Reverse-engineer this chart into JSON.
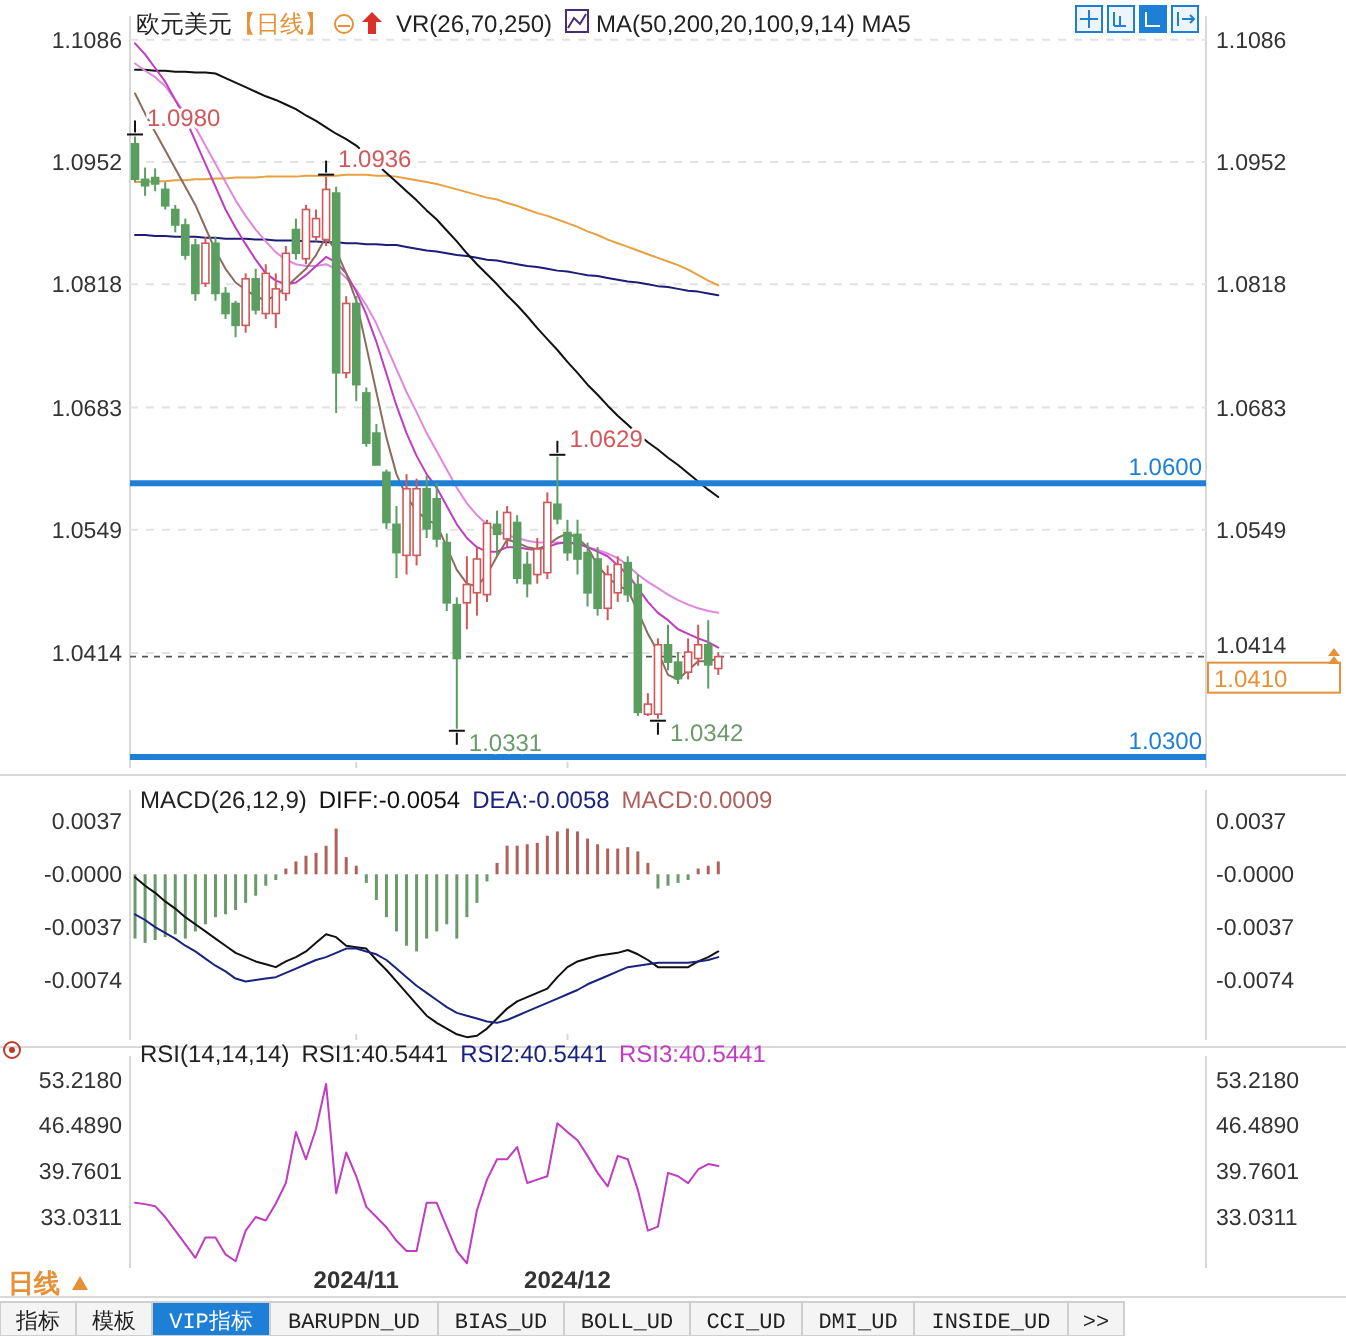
{
  "chart_data": [
    {
      "type": "candlestick",
      "title": "欧元美元",
      "subtitle": "【日线】",
      "categories": [
        null,
        null,
        null,
        null,
        null,
        null,
        null,
        null,
        null,
        null,
        null,
        null,
        null,
        null,
        null,
        null,
        null,
        null,
        null,
        null,
        null,
        null,
        "2024/11",
        null,
        null,
        null,
        null,
        null,
        null,
        null,
        null,
        null,
        null,
        null,
        null,
        null,
        null,
        null,
        null,
        null,
        null,
        null,
        null,
        "2024/12",
        null,
        null,
        null,
        null,
        null,
        null,
        null,
        null,
        null,
        null,
        null,
        null,
        null,
        null,
        null,
        null,
        null,
        null,
        null,
        null,
        null,
        null,
        null,
        null,
        null,
        null,
        null,
        null,
        null,
        null,
        null,
        null,
        null,
        null,
        null,
        null,
        null,
        null,
        null,
        null,
        null,
        null,
        null,
        null,
        null,
        null,
        null,
        null,
        null,
        null,
        null,
        null,
        null,
        null,
        null,
        null,
        null,
        null,
        null,
        null,
        null,
        null,
        null
      ],
      "ohlc": [
        [
          1.0972,
          1.098,
          1.093,
          1.0933
        ],
        [
          1.0933,
          1.0946,
          1.0915,
          1.0926
        ],
        [
          1.0935,
          1.0945,
          1.092,
          1.0928
        ],
        [
          1.0922,
          1.093,
          1.09,
          1.0904
        ],
        [
          1.09,
          1.0905,
          1.0875,
          1.0883
        ],
        [
          1.0883,
          1.089,
          1.0845,
          1.085
        ],
        [
          1.0861,
          1.0868,
          1.08,
          1.0808
        ],
        [
          1.0819,
          1.087,
          1.0815,
          1.0863
        ],
        [
          1.0863,
          1.087,
          1.08,
          1.0808
        ],
        [
          1.0808,
          1.0815,
          1.078,
          1.0786
        ],
        [
          1.0797,
          1.08,
          1.076,
          1.0773
        ],
        [
          1.0773,
          1.083,
          1.0765,
          1.0824
        ],
        [
          1.0824,
          1.0835,
          1.0785,
          1.079
        ],
        [
          1.0786,
          1.084,
          1.078,
          1.083
        ],
        [
          1.0786,
          1.083,
          1.077,
          1.0813
        ],
        [
          1.0808,
          1.086,
          1.08,
          1.0852
        ],
        [
          1.0878,
          1.089,
          1.0845,
          1.0852
        ],
        [
          1.0846,
          1.0905,
          1.084,
          1.09
        ],
        [
          1.087,
          1.09,
          1.0865,
          1.089
        ],
        [
          1.0867,
          1.0936,
          1.086,
          1.0922
        ],
        [
          1.0918,
          1.0925,
          1.0677,
          1.0721
        ],
        [
          1.0721,
          1.0805,
          1.0715,
          1.0797
        ],
        [
          1.0797,
          1.0805,
          1.069,
          1.0708
        ],
        [
          1.0699,
          1.0705,
          1.064,
          1.0644
        ],
        [
          1.0655,
          1.0665,
          1.062,
          1.062
        ],
        [
          1.0612,
          1.0615,
          1.055,
          1.0557
        ],
        [
          1.0555,
          1.0575,
          1.0496,
          1.0524
        ],
        [
          1.0521,
          1.061,
          1.05,
          1.0594
        ],
        [
          1.0521,
          1.0605,
          1.051,
          1.0594
        ],
        [
          1.0594,
          1.0608,
          1.054,
          1.055
        ],
        [
          1.0583,
          1.06,
          1.053,
          1.0539
        ],
        [
          1.0535,
          1.0545,
          1.046,
          1.0469
        ],
        [
          1.0467,
          1.0475,
          1.0331,
          1.0408
        ],
        [
          1.0469,
          1.052,
          1.044,
          1.0489
        ],
        [
          1.048,
          1.053,
          1.0455,
          1.0517
        ],
        [
          1.0478,
          1.056,
          1.047,
          1.0556
        ],
        [
          1.0555,
          1.057,
          1.052,
          1.0544
        ],
        [
          1.0539,
          1.0575,
          1.053,
          1.0568
        ],
        [
          1.0557,
          1.0565,
          1.049,
          1.0496
        ],
        [
          1.0511,
          1.0525,
          1.0475,
          1.049
        ],
        [
          1.05,
          1.054,
          1.049,
          1.0528
        ],
        [
          1.0502,
          1.059,
          1.0495,
          1.0579
        ],
        [
          1.0577,
          1.0629,
          1.0555,
          1.0561
        ],
        [
          1.0546,
          1.056,
          1.0515,
          1.0524
        ],
        [
          1.0544,
          1.056,
          1.05,
          1.0517
        ],
        [
          1.0524,
          1.0535,
          1.0465,
          1.048
        ],
        [
          1.0517,
          1.053,
          1.0455,
          1.0463
        ],
        [
          1.0463,
          1.051,
          1.045,
          1.05
        ],
        [
          1.048,
          1.052,
          1.047,
          1.0511
        ],
        [
          1.0513,
          1.052,
          1.047,
          1.0478
        ],
        [
          1.0489,
          1.05,
          1.0345,
          1.0349
        ],
        [
          1.0347,
          1.037,
          1.0345,
          1.0358
        ],
        [
          1.0347,
          1.043,
          1.0342,
          1.0423
        ],
        [
          1.0423,
          1.0445,
          1.0395,
          1.0404
        ],
        [
          1.0404,
          1.0415,
          1.038,
          1.0386
        ],
        [
          1.0393,
          1.043,
          1.0385,
          1.0415
        ],
        [
          1.0408,
          1.0445,
          1.04,
          1.0423
        ],
        [
          1.0423,
          1.045,
          1.0375,
          1.0401
        ],
        [
          1.0397,
          1.0415,
          1.039,
          1.041
        ],
        null,
        null,
        null,
        null,
        null,
        null,
        null,
        null,
        null,
        null,
        null,
        null,
        null,
        null,
        null,
        null,
        null,
        null,
        null,
        null,
        null,
        null,
        null,
        null,
        null,
        null,
        null,
        null,
        null,
        null,
        null,
        null,
        null,
        null,
        null,
        null,
        null,
        null,
        null,
        null,
        null,
        null,
        null,
        null,
        null,
        null,
        null,
        null
      ],
      "colors": [
        "#5a9e60",
        "#5a9e60",
        "#5a9e60",
        "#5a9e60",
        "#5a9e60",
        "#5a9e60",
        "#5a9e60",
        "#d0585a",
        "#5a9e60",
        "#5a9e60",
        "#5a9e60",
        "#d0585a",
        "#5a9e60",
        "#d0585a",
        "#d0585a",
        "#d0585a",
        "#5a9e60",
        "#d0585a",
        "#d0585a",
        "#d0585a",
        "#5a9e60",
        "#d0585a",
        "#5a9e60",
        "#5a9e60",
        "#5a9e60",
        "#5a9e60",
        "#5a9e60",
        "#d0585a",
        "#d0585a",
        "#5a9e60",
        "#5a9e60",
        "#5a9e60",
        "#5a9e60",
        "#d0585a",
        "#d0585a",
        "#d0585a",
        "#5a9e60",
        "#d0585a",
        "#5a9e60",
        "#5a9e60",
        "#d0585a",
        "#d0585a",
        "#5a9e60",
        "#5a9e60",
        "#5a9e60",
        "#5a9e60",
        "#5a9e60",
        "#d0585a",
        "#d0585a",
        "#5a9e60",
        "#5a9e60",
        "#d0585a",
        "#d0585a",
        "#5a9e60",
        "#5a9e60",
        "#d0585a",
        "#d0585a",
        "#5a9e60",
        "#d0585a",
        null,
        null,
        null,
        null,
        null,
        null,
        null,
        null,
        null,
        null,
        null,
        null,
        null,
        null,
        null,
        null,
        null,
        null,
        null,
        null,
        null,
        null,
        null,
        null,
        null,
        null,
        null,
        null,
        null,
        null,
        null,
        null,
        null,
        null,
        null,
        null,
        null,
        null,
        null,
        null,
        null,
        null,
        null,
        null,
        null,
        null,
        null,
        null
      ],
      "series": [
        {
          "type": "line",
          "color": "#1c1c7a",
          "values": [
            1.0872,
            1.0872,
            1.0871,
            1.0871,
            1.087,
            1.087,
            1.087,
            1.0869,
            1.0869,
            1.0868,
            1.0868,
            1.0868,
            1.0867,
            1.0867,
            1.0866,
            1.0866,
            1.0866,
            1.0865,
            1.0865,
            1.0864,
            1.0864,
            1.0863,
            1.0863,
            1.0862,
            1.0862,
            1.0861,
            1.0861,
            1.0859,
            1.0857,
            1.0855,
            1.0854,
            1.0852,
            1.085,
            1.0849,
            1.0847,
            1.0845,
            1.0844,
            1.0842,
            1.084,
            1.0838,
            1.0837,
            1.0835,
            1.0833,
            1.0832,
            1.083,
            1.0828,
            1.0827,
            1.0825,
            1.0823,
            1.0821,
            1.082,
            1.0818,
            1.0816,
            1.0815,
            1.0813,
            1.0811,
            1.081,
            1.0808,
            1.0806,
            null,
            null,
            null,
            null,
            null,
            null,
            null,
            null,
            null,
            null,
            null,
            null,
            null,
            null,
            null,
            null,
            null,
            null,
            null,
            null,
            null,
            null,
            null,
            null,
            null,
            null,
            null,
            null,
            null,
            null,
            null,
            null,
            null,
            null,
            null,
            null,
            null,
            null,
            null,
            null,
            null,
            null,
            null,
            null,
            null,
            null,
            null,
            null
          ]
        },
        {
          "type": "line",
          "color": "#e8a040",
          "values": [
            1.093,
            1.093,
            1.0931,
            1.0931,
            1.0932,
            1.0932,
            1.0933,
            1.0933,
            1.0934,
            1.0934,
            1.0935,
            1.0935,
            1.0935,
            1.0936,
            1.0936,
            1.0936,
            1.0936,
            1.0937,
            1.0937,
            1.0937,
            1.0937,
            1.0938,
            1.0938,
            1.0938,
            1.0937,
            1.0937,
            1.0936,
            1.0934,
            1.0932,
            1.093,
            1.0928,
            1.0925,
            1.0922,
            1.0919,
            1.0916,
            1.0913,
            1.0911,
            1.0907,
            1.0904,
            1.09,
            1.0896,
            1.0893,
            1.0889,
            1.0885,
            1.0881,
            1.0876,
            1.0872,
            1.0867,
            1.0863,
            1.0859,
            1.0855,
            1.0851,
            1.0847,
            1.0843,
            1.0839,
            1.0834,
            1.0828,
            1.0822,
            1.0817,
            null,
            null,
            null,
            null,
            null,
            null,
            null,
            null,
            null,
            null,
            null,
            null,
            null,
            null,
            null,
            null,
            null,
            null,
            null,
            null,
            null,
            null,
            null,
            null,
            null,
            null,
            null,
            null,
            null,
            null,
            null,
            null,
            null,
            null,
            null,
            null,
            null,
            null,
            null,
            null,
            null,
            null,
            null,
            null,
            null,
            null,
            null,
            null
          ]
        },
        {
          "type": "line",
          "color": "#111111",
          "values": [
            1.1053,
            1.1053,
            1.1052,
            1.1052,
            1.1051,
            1.1051,
            1.105,
            1.105,
            1.1049,
            1.1044,
            1.1039,
            1.1034,
            1.1029,
            1.1024,
            1.102,
            1.1015,
            1.101,
            1.1003,
            1.0997,
            1.099,
            1.0983,
            1.0977,
            1.097,
            1.096,
            1.095,
            1.094,
            1.093,
            1.092,
            1.091,
            1.0899,
            1.0889,
            1.0877,
            1.0865,
            1.0852,
            1.084,
            1.0829,
            1.0818,
            1.0806,
            1.0795,
            1.0783,
            1.077,
            1.0758,
            1.0746,
            1.0733,
            1.0721,
            1.0708,
            1.0697,
            1.0685,
            1.0674,
            1.0664,
            1.0654,
            1.0645,
            1.0637,
            1.0628,
            1.062,
            1.0611,
            1.0602,
            1.0593,
            1.0585,
            null,
            null,
            null,
            null,
            null,
            null,
            null,
            null,
            null,
            null,
            null,
            null,
            null,
            null,
            null,
            null,
            null,
            null,
            null,
            null,
            null,
            null,
            null,
            null,
            null,
            null,
            null,
            null,
            null,
            null,
            null,
            null,
            null,
            null,
            null,
            null,
            null,
            null,
            null,
            null,
            null,
            null,
            null,
            null,
            null,
            null,
            null,
            null
          ]
        },
        {
          "type": "line",
          "color": "#e088e0",
          "values": [
            1.106,
            1.1052,
            1.1045,
            1.1035,
            1.102,
            1.1005,
            1.099,
            1.097,
            1.095,
            1.093,
            1.091,
            1.0893,
            1.0878,
            1.0865,
            1.0853,
            1.0845,
            1.084,
            1.0838,
            1.0838,
            1.084,
            1.0835,
            1.0825,
            1.0812,
            1.0795,
            1.0775,
            1.075,
            1.0725,
            1.07,
            1.0678,
            1.0655,
            1.0635,
            1.0615,
            1.0595,
            1.0578,
            1.0565,
            1.0555,
            1.0548,
            1.0543,
            1.054,
            1.0537,
            1.0535,
            1.0535,
            1.0535,
            1.0535,
            1.0533,
            1.053,
            1.0527,
            1.0523,
            1.0518,
            1.051,
            1.05,
            1.0492,
            1.0485,
            1.0478,
            1.0472,
            1.0467,
            1.0463,
            1.046,
            1.0458,
            null,
            null,
            null,
            null,
            null,
            null,
            null,
            null,
            null,
            null,
            null,
            null,
            null,
            null,
            null,
            null,
            null,
            null,
            null,
            null,
            null,
            null,
            null,
            null,
            null,
            null,
            null,
            null,
            null,
            null,
            null,
            null,
            null,
            null,
            null,
            null,
            null,
            null,
            null,
            null,
            null,
            null,
            null,
            null,
            null,
            null,
            null,
            null
          ]
        },
        {
          "type": "line",
          "color": "#c03cc0",
          "values": [
            1.1082,
            1.107,
            1.1055,
            1.104,
            1.102,
            1.1,
            1.0975,
            1.095,
            1.0925,
            1.09,
            1.088,
            1.0862,
            1.0845,
            1.083,
            1.0822,
            1.0818,
            1.082,
            1.0828,
            1.0838,
            1.0848,
            1.0842,
            1.083,
            1.081,
            1.0785,
            1.0755,
            1.072,
            1.0685,
            1.0655,
            1.063,
            1.061,
            1.0595,
            1.0575,
            1.0555,
            1.054,
            1.053,
            1.0525,
            1.0525,
            1.053,
            1.053,
            1.0528,
            1.0527,
            1.053,
            1.0534,
            1.0535,
            1.0534,
            1.053,
            1.0525,
            1.052,
            1.051,
            1.05,
            1.0485,
            1.047,
            1.0458,
            1.045,
            1.044,
            1.0435,
            1.043,
            1.0426,
            1.042,
            null,
            null,
            null,
            null,
            null,
            null,
            null,
            null,
            null,
            null,
            null,
            null,
            null,
            null,
            null,
            null,
            null,
            null,
            null,
            null,
            null,
            null,
            null,
            null,
            null,
            null,
            null,
            null,
            null,
            null,
            null,
            null,
            null,
            null,
            null,
            null,
            null,
            null,
            null,
            null,
            null,
            null,
            null,
            null,
            null,
            null,
            null,
            null
          ]
        },
        {
          "type": "line",
          "color": "#8b6d5c",
          "values": [
            1.1027,
            1.1005,
            1.0985,
            1.0965,
            1.0945,
            1.0925,
            1.0905,
            1.088,
            1.0855,
            1.0835,
            1.082,
            1.0812,
            1.0805,
            1.08,
            1.0806,
            1.0815,
            1.0825,
            1.0835,
            1.085,
            1.087,
            1.0855,
            1.083,
            1.08,
            1.075,
            1.07,
            1.065,
            1.061,
            1.0585,
            1.057,
            1.056,
            1.0555,
            1.053,
            1.0505,
            1.049,
            1.0487,
            1.05,
            1.052,
            1.0538,
            1.0535,
            1.053,
            1.0528,
            1.0532,
            1.054,
            1.0545,
            1.054,
            1.053,
            1.051,
            1.0497,
            1.0488,
            1.0483,
            1.046,
            1.0435,
            1.0415,
            1.039,
            1.0385,
            1.0395,
            1.0405,
            1.0405,
            1.0408,
            null,
            null,
            null,
            null,
            null,
            null,
            null,
            null,
            null,
            null,
            null,
            null,
            null,
            null,
            null,
            null,
            null,
            null,
            null,
            null,
            null,
            null,
            null,
            null,
            null,
            null,
            null,
            null,
            null,
            null,
            null,
            null,
            null,
            null,
            null,
            null,
            null,
            null,
            null,
            null,
            null,
            null,
            null,
            null,
            null,
            null,
            null,
            null
          ]
        }
      ],
      "ylim": [
        1.0288,
        1.1112
      ],
      "yticks": [
        1.1086,
        1.0952,
        1.0818,
        1.0683,
        1.0549,
        1.0414
      ],
      "y2lim": [
        1.0288,
        1.1112
      ],
      "y2ticks": [
        1.1086,
        1.0952,
        1.0818,
        1.0683,
        1.0549,
        1.0414
      ],
      "grid": "y",
      "tick_labels": "y",
      "ref_lines": [
        {
          "axis": "y",
          "value": 1.06,
          "label": "1.0600",
          "color": "#1e7fd6",
          "line_style": "solid"
        },
        {
          "axis": "y",
          "value": 1.03,
          "label": "1.0300",
          "color": "#1e7fd6",
          "line_style": "solid"
        },
        {
          "axis": "y",
          "value": 1.041,
          "label": "1.0410",
          "color": "#555555",
          "line_style": "dashed"
        }
      ],
      "annotations": [
        "VR(26,70,250)",
        "MA(50,200,20,100,9,14) MA5",
        "1.0980",
        "1.0936",
        "1.0629",
        "1.0331",
        "1.0342"
      ]
    },
    {
      "type": "line",
      "title": "MACD(26,12,9)",
      "categories": [
        null,
        null,
        null,
        null,
        null,
        null,
        null,
        null,
        null,
        null,
        null,
        null,
        null,
        null,
        null,
        null,
        null,
        null,
        null,
        null,
        null,
        null,
        "2024/11",
        null,
        null,
        null,
        null,
        null,
        null,
        null,
        null,
        null,
        null,
        null,
        null,
        null,
        null,
        null,
        null,
        null,
        null,
        null,
        null,
        "2024/12",
        null,
        null,
        null,
        null,
        null,
        null,
        null,
        null,
        null,
        null,
        null,
        null,
        null,
        null,
        null,
        null,
        null,
        null,
        null,
        null,
        null,
        null,
        null,
        null,
        null,
        null,
        null,
        null,
        null,
        null,
        null,
        null,
        null,
        null,
        null,
        null,
        null,
        null,
        null,
        null,
        null,
        null,
        null,
        null,
        null,
        null,
        null,
        null,
        null,
        null,
        null,
        null,
        null,
        null,
        null,
        null,
        null,
        null,
        null,
        null,
        null,
        null,
        null
      ],
      "series": [
        {
          "name": "DIFF:-0.0054",
          "color": "#111111",
          "values": [
            -0.0002,
            -0.0008,
            -0.0013,
            -0.0019,
            -0.0024,
            -0.003,
            -0.0035,
            -0.004,
            -0.0045,
            -0.005,
            -0.0055,
            -0.0058,
            -0.0061,
            -0.0063,
            -0.0065,
            -0.0061,
            -0.0058,
            -0.0054,
            -0.0048,
            -0.0042,
            -0.0044,
            -0.005,
            -0.0051,
            -0.0052,
            -0.006,
            -0.0067,
            -0.0075,
            -0.0083,
            -0.0091,
            -0.0099,
            -0.0104,
            -0.0108,
            -0.0112,
            -0.0114,
            -0.0113,
            -0.0108,
            -0.0101,
            -0.0094,
            -0.0089,
            -0.0086,
            -0.0083,
            -0.008,
            -0.0072,
            -0.0065,
            -0.0061,
            -0.0059,
            -0.0057,
            -0.0056,
            -0.0055,
            -0.0053,
            -0.0056,
            -0.006,
            -0.0065,
            -0.0065,
            -0.0065,
            -0.0065,
            -0.0061,
            -0.0058,
            -0.0054,
            null,
            null,
            null,
            null,
            null,
            null,
            null,
            null,
            null,
            null,
            null,
            null,
            null,
            null,
            null,
            null,
            null,
            null,
            null,
            null,
            null,
            null,
            null,
            null,
            null,
            null,
            null,
            null,
            null,
            null,
            null,
            null,
            null,
            null,
            null,
            null,
            null,
            null,
            null,
            null,
            null,
            null,
            null,
            null,
            null,
            null,
            null,
            null
          ]
        },
        {
          "name": "DEA:-0.0058",
          "color": "#1a237e",
          "values": [
            -0.0028,
            -0.0032,
            -0.0037,
            -0.0041,
            -0.0045,
            -0.005,
            -0.0054,
            -0.0059,
            -0.0064,
            -0.0068,
            -0.0073,
            -0.0075,
            -0.0074,
            -0.0073,
            -0.0072,
            -0.0069,
            -0.0066,
            -0.0063,
            -0.006,
            -0.0058,
            -0.0055,
            -0.0052,
            -0.0052,
            -0.0054,
            -0.0056,
            -0.006,
            -0.0066,
            -0.0072,
            -0.0078,
            -0.0083,
            -0.0088,
            -0.0093,
            -0.0097,
            -0.0099,
            -0.0101,
            -0.0103,
            -0.0104,
            -0.0102,
            -0.0099,
            -0.0096,
            -0.0093,
            -0.009,
            -0.0087,
            -0.0084,
            -0.0081,
            -0.0077,
            -0.0074,
            -0.0071,
            -0.0068,
            -0.0065,
            -0.0064,
            -0.0063,
            -0.0062,
            -0.0062,
            -0.0062,
            -0.0062,
            -0.0061,
            -0.006,
            -0.0058,
            null,
            null,
            null,
            null,
            null,
            null,
            null,
            null,
            null,
            null,
            null,
            null,
            null,
            null,
            null,
            null,
            null,
            null,
            null,
            null,
            null,
            null,
            null,
            null,
            null,
            null,
            null,
            null,
            null,
            null,
            null,
            null,
            null,
            null,
            null,
            null,
            null,
            null,
            null,
            null,
            null,
            null,
            null,
            null,
            null,
            null,
            null,
            null
          ]
        },
        {
          "name": "MACD:0.0009",
          "type": "bar",
          "color": "#b0605a",
          "values": [
            -0.0045,
            -0.0048,
            -0.0046,
            -0.0044,
            -0.0042,
            -0.0045,
            -0.004,
            -0.0035,
            -0.003,
            -0.0028,
            -0.0025,
            -0.002,
            -0.0015,
            -0.0008,
            -0.0004,
            0.0004,
            0.0009,
            0.0013,
            0.0015,
            0.002,
            0.0032,
            0.0012,
            0.0006,
            -0.0006,
            -0.0018,
            -0.003,
            -0.004,
            -0.005,
            -0.0054,
            -0.0045,
            -0.004,
            -0.0035,
            -0.0045,
            -0.003,
            -0.002,
            -0.0005,
            0.0008,
            0.002,
            0.002,
            0.0021,
            0.0022,
            0.0027,
            0.003,
            0.0032,
            0.003,
            0.0025,
            0.0021,
            0.0018,
            0.0018,
            0.0019,
            0.0016,
            0.0008,
            -0.001,
            -0.0008,
            -0.0006,
            -0.0004,
            0.0004,
            0.0006,
            0.0009,
            null,
            null,
            null,
            null,
            null,
            null,
            null,
            null,
            null,
            null,
            null,
            null,
            null,
            null,
            null,
            null,
            null,
            null,
            null,
            null,
            null,
            null,
            null,
            null,
            null,
            null,
            null,
            null,
            null,
            null,
            null,
            null,
            null,
            null,
            null,
            null,
            null,
            null,
            null,
            null,
            null,
            null,
            null,
            null,
            null,
            null,
            null,
            null
          ],
          "colors": [
            "#6a9a6a",
            "#6a9a6a",
            "#6a9a6a",
            "#6a9a6a",
            "#6a9a6a",
            "#6a9a6a",
            "#6a9a6a",
            "#6a9a6a",
            "#6a9a6a",
            "#6a9a6a",
            "#6a9a6a",
            "#6a9a6a",
            "#6a9a6a",
            "#6a9a6a",
            "#6a9a6a",
            "#b0605a",
            "#b0605a",
            "#b0605a",
            "#b0605a",
            "#b0605a",
            "#b0605a",
            "#b0605a",
            "#b0605a",
            "#6a9a6a",
            "#6a9a6a",
            "#6a9a6a",
            "#6a9a6a",
            "#6a9a6a",
            "#6a9a6a",
            "#6a9a6a",
            "#6a9a6a",
            "#6a9a6a",
            "#6a9a6a",
            "#6a9a6a",
            "#6a9a6a",
            "#6a9a6a",
            "#b0605a",
            "#b0605a",
            "#b0605a",
            "#b0605a",
            "#b0605a",
            "#b0605a",
            "#b0605a",
            "#b0605a",
            "#b0605a",
            "#b0605a",
            "#b0605a",
            "#b0605a",
            "#b0605a",
            "#b0605a",
            "#b0605a",
            "#b0605a",
            "#6a9a6a",
            "#6a9a6a",
            "#6a9a6a",
            "#6a9a6a",
            "#b0605a",
            "#b0605a",
            "#b0605a",
            null,
            null,
            null,
            null,
            null,
            null,
            null,
            null,
            null,
            null,
            null,
            null,
            null,
            null,
            null,
            null,
            null,
            null,
            null,
            null,
            null,
            null,
            null,
            null,
            null,
            null,
            null,
            null,
            null,
            null,
            null,
            null,
            null,
            null,
            null,
            null,
            null,
            null,
            null,
            null,
            null,
            null,
            null,
            null,
            null,
            null,
            null,
            null
          ]
        }
      ],
      "ylim": [
        -0.0116,
        0.0059
      ],
      "yticks": [
        0.0037,
        {
          "value": 0,
          "label": "-0.0000"
        },
        -0.0037,
        -0.0074
      ],
      "y2lim": [
        -0.0116,
        0.0059
      ],
      "y2ticks": [
        0.0037,
        {
          "value": 0,
          "label": "-0.0000"
        },
        -0.0037,
        -0.0074
      ],
      "legend": "top left",
      "tick_labels": "y"
    },
    {
      "type": "line",
      "title": "RSI(14,14,14)",
      "categories": [
        null,
        null,
        null,
        null,
        null,
        null,
        null,
        null,
        null,
        null,
        null,
        null,
        null,
        null,
        null,
        null,
        null,
        null,
        null,
        null,
        null,
        null,
        "2024/11",
        null,
        null,
        null,
        null,
        null,
        null,
        null,
        null,
        null,
        null,
        null,
        null,
        null,
        null,
        null,
        null,
        null,
        null,
        null,
        null,
        "2024/12",
        null,
        null,
        null,
        null,
        null,
        null,
        null,
        null,
        null,
        null,
        null,
        null,
        null,
        null,
        null,
        null,
        null,
        null,
        null,
        null,
        null,
        null,
        null,
        null,
        null,
        null,
        null,
        null,
        null,
        null,
        null,
        null,
        null,
        null,
        null,
        null,
        null,
        null,
        null,
        null,
        null,
        null,
        null,
        null,
        null,
        null,
        null,
        null,
        null,
        null,
        null,
        null,
        null,
        null,
        null,
        null,
        null,
        null,
        null,
        null,
        null,
        null,
        null
      ],
      "series": [
        {
          "name": "RSI3:40.5441",
          "color": "#c03cc0",
          "values": [
            35.1,
            34.9,
            34.6,
            33.0,
            31.0,
            29.0,
            27.0,
            30.0,
            30.0,
            27.5,
            26.5,
            31.0,
            33.0,
            32.5,
            35.0,
            38.0,
            45.5,
            41.5,
            46.0,
            52.6,
            36.5,
            42.5,
            39.0,
            34.5,
            33.0,
            31.5,
            29.5,
            28.0,
            28.0,
            35.1,
            35.1,
            31.5,
            28.0,
            26.2,
            34.0,
            38.5,
            41.5,
            41.5,
            43.3,
            38.0,
            38.5,
            39.0,
            46.8,
            45.5,
            44.3,
            42.0,
            39.5,
            37.5,
            42.0,
            41.5,
            37.0,
            31.0,
            31.6,
            39.5,
            39.0,
            38.0,
            40.0,
            40.8,
            40.5,
            null,
            null,
            null,
            null,
            null,
            null,
            null,
            null,
            null,
            null,
            null,
            null,
            null,
            null,
            null,
            null,
            null,
            null,
            null,
            null,
            null,
            null,
            null,
            null,
            null,
            null,
            null,
            null,
            null,
            null,
            null,
            null,
            null,
            null,
            null,
            null,
            null,
            null,
            null,
            null,
            null,
            null,
            null,
            null,
            null,
            null,
            null,
            null
          ]
        }
      ],
      "ylim": [
        25.5,
        56.7
      ],
      "yticks": [
        {
          "value": 53.218,
          "label": "53.2180"
        },
        {
          "value": 46.489,
          "label": "46.4890"
        },
        39.7601,
        33.0311
      ],
      "y2lim": [
        25.5,
        56.7
      ],
      "y2ticks": [
        {
          "value": 53.218,
          "label": "53.2180"
        },
        {
          "value": 46.489,
          "label": "46.4890"
        },
        39.7601,
        33.0311
      ],
      "legend": "top",
      "annotations": [
        "RSI1:40.5441",
        "RSI2:40.5441"
      ]
    },
    {
      "type": "other",
      "annotations": [
        "日线",
        "指标",
        "模板",
        "VIP指标",
        "BARUPDN_UD",
        "BIAS_UD",
        "BOLL_UD",
        "CCI_UD",
        "DMI_UD",
        "INSIDE_UD",
        ">>"
      ]
    }
  ]
}
